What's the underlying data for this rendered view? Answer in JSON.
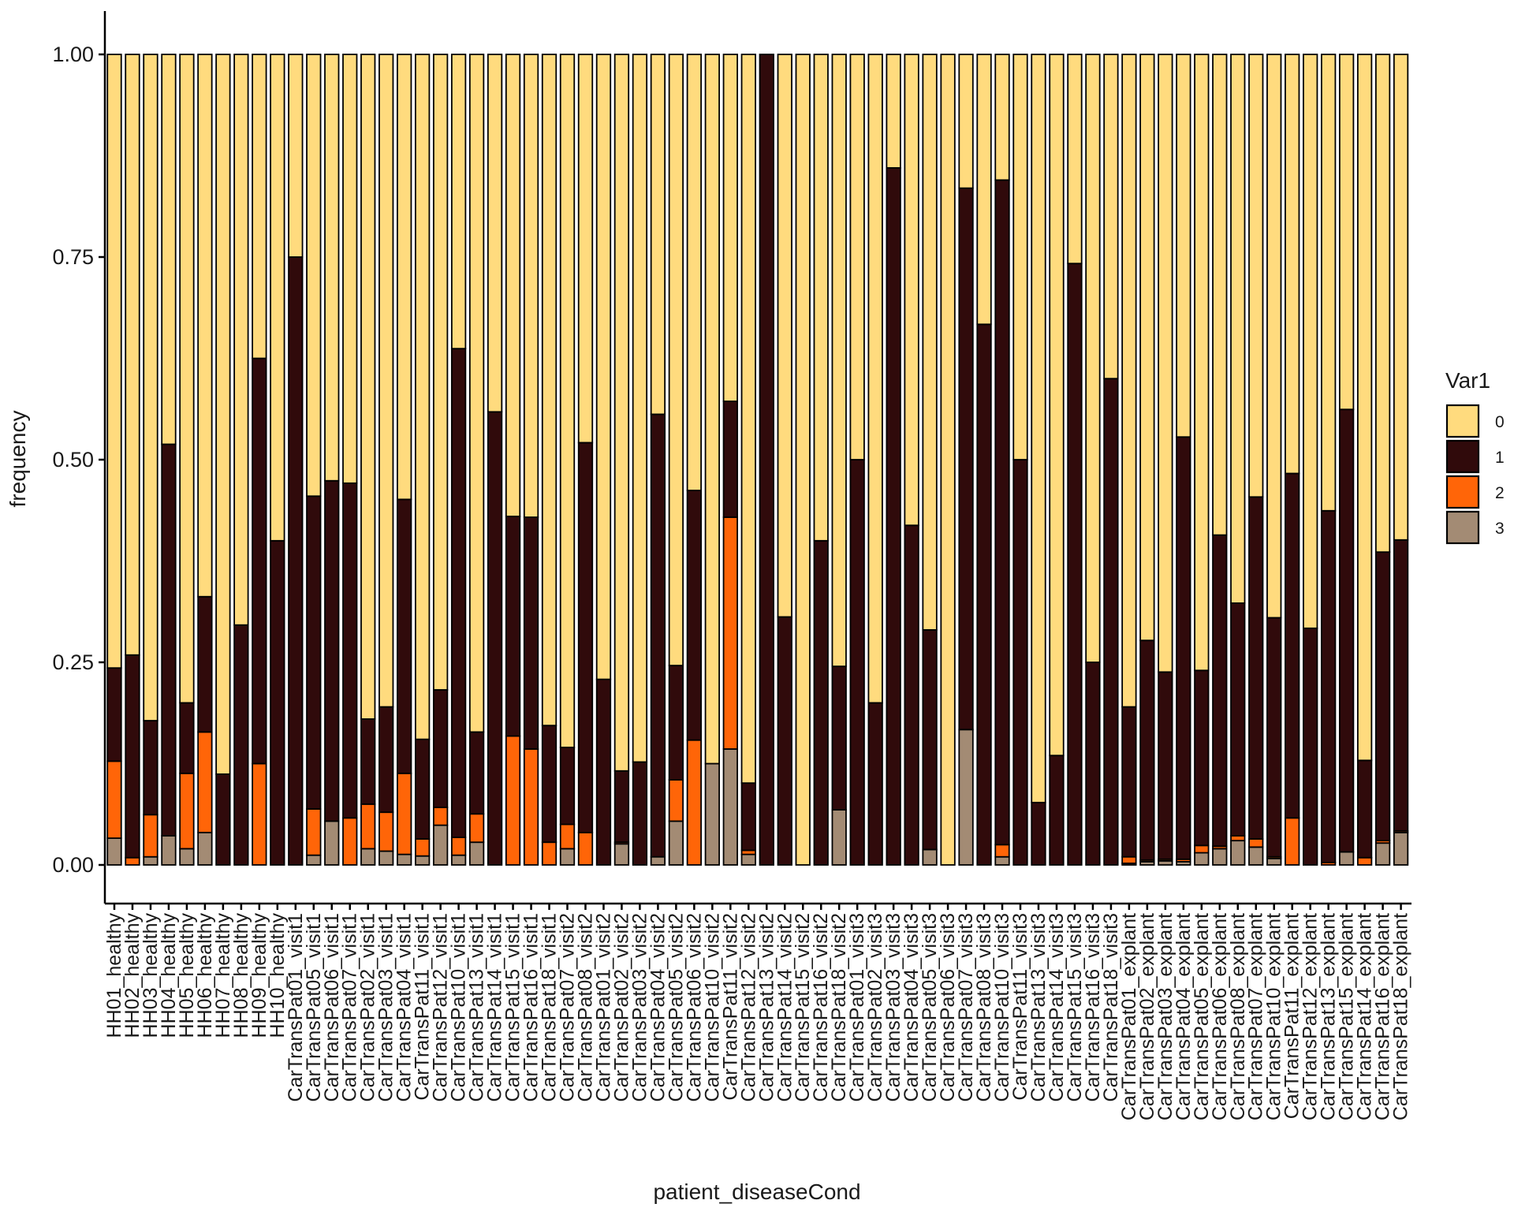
{
  "chart_data": {
    "type": "bar",
    "stacked": true,
    "xlabel": "patient_diseaseCond",
    "ylabel": "frequency",
    "ylim": [
      0,
      1
    ],
    "yticks": [
      "0.00",
      "0.25",
      "0.50",
      "0.75",
      "1.00"
    ],
    "grid": false,
    "legend": {
      "title": "Var1",
      "position": "right"
    },
    "categories": [
      "HH01_healthy",
      "HH02_healthy",
      "HH03_healthy",
      "HH04_healthy",
      "HH05_healthy",
      "HH06_healthy",
      "HH07_healthy",
      "HH08_healthy",
      "HH09_healthy",
      "HH10_healthy",
      "CarTransPat01_visit1",
      "CarTransPat05_visit1",
      "CarTransPat06_visit1",
      "CarTransPat07_visit1",
      "CarTransPat02_visit1",
      "CarTransPat03_visit1",
      "CarTransPat04_visit1",
      "CarTransPat11_visit1",
      "CarTransPat12_visit1",
      "CarTransPat10_visit1",
      "CarTransPat13_visit1",
      "CarTransPat14_visit1",
      "CarTransPat15_visit1",
      "CarTransPat16_visit1",
      "CarTransPat18_visit1",
      "CarTransPat07_visit2",
      "CarTransPat08_visit2",
      "CarTransPat01_visit2",
      "CarTransPat02_visit2",
      "CarTransPat03_visit2",
      "CarTransPat04_visit2",
      "CarTransPat05_visit2",
      "CarTransPat06_visit2",
      "CarTransPat10_visit2",
      "CarTransPat11_visit2",
      "CarTransPat12_visit2",
      "CarTransPat13_visit2",
      "CarTransPat14_visit2",
      "CarTransPat15_visit2",
      "CarTransPat16_visit2",
      "CarTransPat18_visit2",
      "CarTransPat01_visit3",
      "CarTransPat02_visit3",
      "CarTransPat03_visit3",
      "CarTransPat04_visit3",
      "CarTransPat05_visit3",
      "CarTransPat06_visit3",
      "CarTransPat07_visit3",
      "CarTransPat08_visit3",
      "CarTransPat10_visit3",
      "CarTransPat11_visit3",
      "CarTransPat13_visit3",
      "CarTransPat14_visit3",
      "CarTransPat15_visit3",
      "CarTransPat16_visit3",
      "CarTransPat18_visit3",
      "CarTransPat01_explant",
      "CarTransPat02_explant",
      "CarTransPat03_explant",
      "CarTransPat04_explant",
      "CarTransPat05_explant",
      "CarTransPat06_explant",
      "CarTransPat08_explant",
      "CarTransPat07_explant",
      "CarTransPat10_explant",
      "CarTransPat11_explant",
      "CarTransPat12_explant",
      "CarTransPat13_explant",
      "CarTransPat15_explant",
      "CarTransPat14_explant",
      "CarTransPat16_explant",
      "CarTransPat18_explant"
    ],
    "series": [
      {
        "name": "3",
        "color": "#A38B74",
        "values": [
          0.033,
          0,
          0.01,
          0.036,
          0.02,
          0.04,
          0,
          0,
          0,
          0,
          0,
          0.012,
          0.054,
          0,
          0.02,
          0.017,
          0.013,
          0.011,
          0.049,
          0.012,
          0.028,
          0,
          0,
          0,
          0,
          0.02,
          0,
          0,
          0.026,
          0,
          0.01,
          0.054,
          0,
          0.125,
          0.143,
          0.013,
          0,
          0,
          0,
          0,
          0.068,
          0,
          0,
          0,
          0,
          0.019,
          0,
          0.167,
          0,
          0.01,
          0,
          0,
          0,
          0,
          0,
          0,
          0.002,
          0.004,
          0.005,
          0.004,
          0.015,
          0.02,
          0.03,
          0.022,
          0.008,
          0,
          0,
          0,
          0.016,
          0,
          0.027,
          0.04
        ]
      },
      {
        "name": "2",
        "color": "#FF6508",
        "values": [
          0.095,
          0.009,
          0.052,
          0,
          0.093,
          0.124,
          0,
          0,
          0.125,
          0,
          0,
          0.057,
          0,
          0.058,
          0.055,
          0.048,
          0.1,
          0.021,
          0.022,
          0.022,
          0.035,
          0,
          0.159,
          0.143,
          0.028,
          0.03,
          0.04,
          0,
          0.002,
          0,
          0,
          0.051,
          0.154,
          0,
          0.286,
          0.005,
          0,
          0,
          0,
          0,
          0,
          0,
          0,
          0,
          0,
          0,
          0,
          0,
          0,
          0.015,
          0,
          0,
          0,
          0,
          0,
          0,
          0.008,
          0.002,
          0.002,
          0.003,
          0.009,
          0.003,
          0.006,
          0.01,
          0.002,
          0.058,
          0,
          0.003,
          0,
          0.009,
          0.003,
          0.002
        ]
      },
      {
        "name": "1",
        "color": "#300A0B",
        "values": [
          0.115,
          0.25,
          0.116,
          0.483,
          0.087,
          0.167,
          0.112,
          0.296,
          0.5,
          0.4,
          0.75,
          0.386,
          0.42,
          0.413,
          0.105,
          0.13,
          0.338,
          0.123,
          0.145,
          0.603,
          0.101,
          0.559,
          0.271,
          0.286,
          0.144,
          0.095,
          0.481,
          0.229,
          0.088,
          0.127,
          0.546,
          0.141,
          0.308,
          0,
          0.143,
          0.083,
          1.0,
          0.306,
          0,
          0.4,
          0.177,
          0.5,
          0.2,
          0.86,
          0.419,
          0.271,
          0,
          0.668,
          0.667,
          0.82,
          0.5,
          0.077,
          0.135,
          0.742,
          0.25,
          0.6,
          0.185,
          0.271,
          0.231,
          0.521,
          0.216,
          0.384,
          0.287,
          0.422,
          0.295,
          0.425,
          0.292,
          0.434,
          0.546,
          0.12,
          0.356,
          0.359
        ]
      },
      {
        "name": "0",
        "color": "#FFDB7E",
        "values": [
          0.757,
          0.741,
          0.822,
          0.481,
          0.8,
          0.669,
          0.888,
          0.704,
          0.375,
          0.6,
          0.25,
          0.545,
          0.526,
          0.529,
          0.82,
          0.805,
          0.549,
          0.845,
          0.784,
          0.363,
          0.836,
          0.441,
          0.57,
          0.571,
          0.828,
          0.855,
          0.479,
          0.771,
          0.884,
          0.873,
          0.444,
          0.754,
          0.538,
          0.875,
          0.428,
          0.899,
          0,
          0.694,
          1.0,
          0.6,
          0.755,
          0.5,
          0.8,
          0.14,
          0.581,
          0.71,
          1.0,
          0.165,
          0.333,
          0.155,
          0.5,
          0.923,
          0.865,
          0.258,
          0.75,
          0.4,
          0.805,
          0.723,
          0.762,
          0.472,
          0.76,
          0.593,
          0.677,
          0.546,
          0.695,
          0.517,
          0.708,
          0.563,
          0.438,
          0.871,
          0.614,
          0.599
        ]
      }
    ]
  }
}
